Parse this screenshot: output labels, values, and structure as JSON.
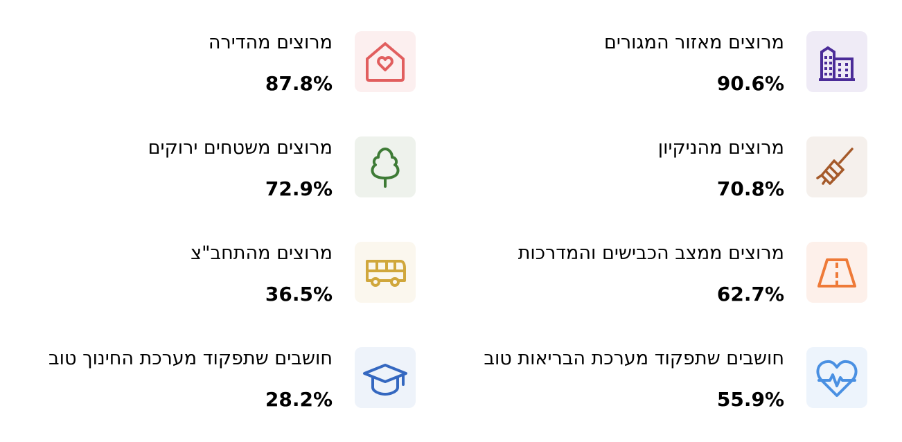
{
  "stats": [
    {
      "label": "מרוצים מאזור המגורים",
      "value": "90.6%",
      "icon": "buildings-icon",
      "bg": "#EFEBF6",
      "color": "#4B2C98"
    },
    {
      "label": "מרוצים מהדירה",
      "value": "87.8%",
      "icon": "house-heart-icon",
      "bg": "#FCEFEF",
      "color": "#E15E5E"
    },
    {
      "label": "מרוצים מהניקיון",
      "value": "70.8%",
      "icon": "broom-icon",
      "bg": "#F5F0EC",
      "color": "#A55A2A"
    },
    {
      "label": "מרוצים משטחים ירוקים",
      "value": "72.9%",
      "icon": "tree-icon",
      "bg": "#EEF2EC",
      "color": "#3E7B36"
    },
    {
      "label": "מרוצים ממצב הכבישים והמדרכות",
      "value": "62.7%",
      "icon": "road-icon",
      "bg": "#FDF0EA",
      "color": "#EE7A38"
    },
    {
      "label": "מרוצים מהתחב\"צ",
      "value": "36.5%",
      "icon": "bus-icon",
      "bg": "#FBF7EE",
      "color": "#D0A73C"
    },
    {
      "label": "חושבים שתפקוד מערכת הבריאות טוב",
      "value": "55.9%",
      "icon": "heart-pulse-icon",
      "bg": "#EDF4FC",
      "color": "#4A90E2"
    },
    {
      "label": "חושבים שתפקוד מערכת החינוך טוב",
      "value": "28.2%",
      "icon": "graduation-cap-icon",
      "bg": "#EEF3FA",
      "color": "#3568C0"
    }
  ]
}
